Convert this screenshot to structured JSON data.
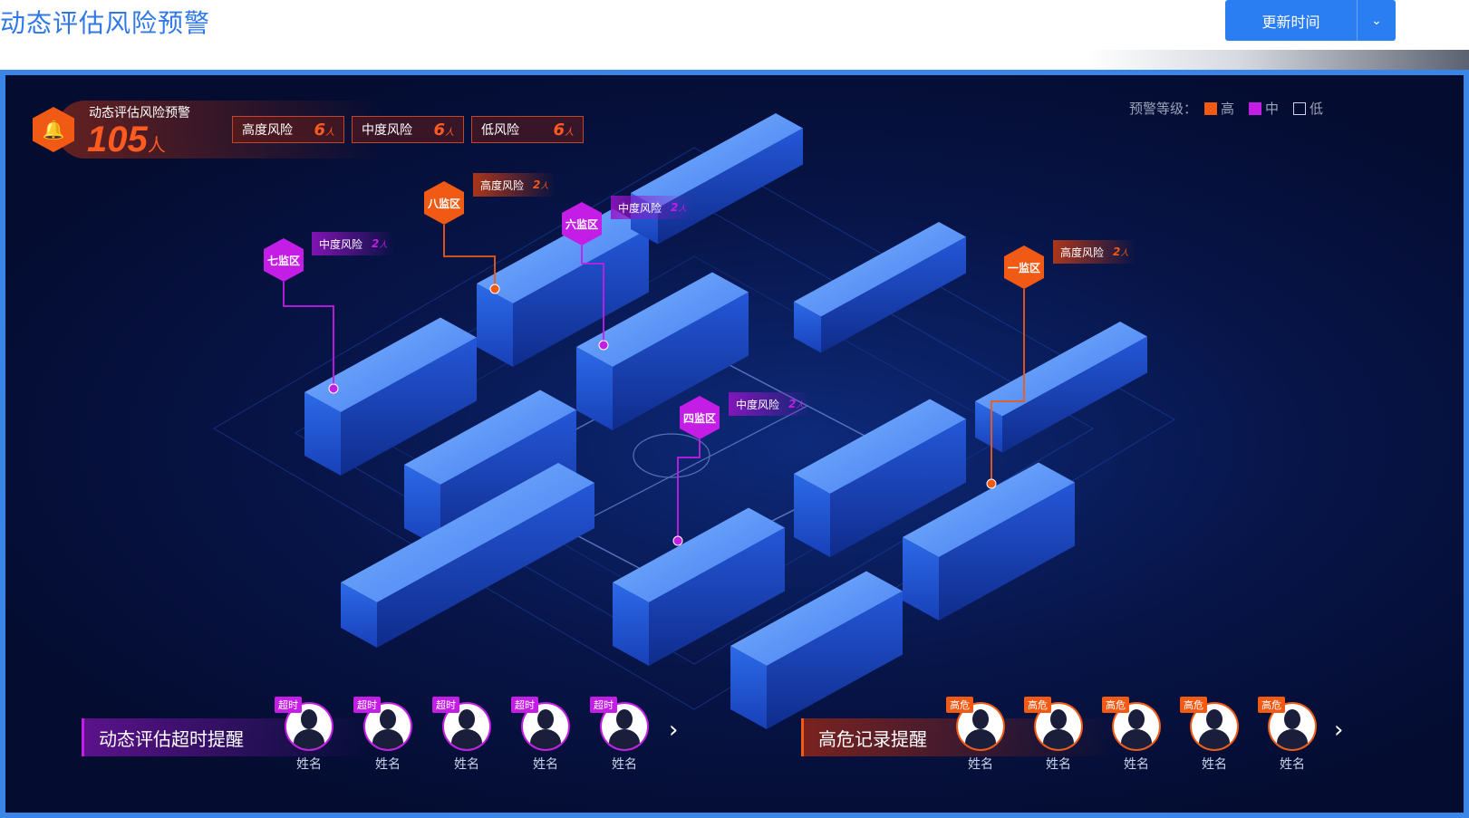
{
  "header": {
    "title": "动态评估风险预警",
    "update_button": "更新时间",
    "dropdown_icon": "chevron-down-icon"
  },
  "summary": {
    "title": "动态评估风险预警",
    "total": "105",
    "unit": "人",
    "levels": [
      {
        "label": "高度风险",
        "count": "6",
        "unit": "人"
      },
      {
        "label": "中度风险",
        "count": "6",
        "unit": "人"
      },
      {
        "label": "低风险",
        "count": "6",
        "unit": "人"
      }
    ]
  },
  "legend": {
    "label": "预警等级：",
    "items": [
      {
        "label": "高",
        "color": "#f05a14"
      },
      {
        "label": "中",
        "color": "#c41de6"
      },
      {
        "label": "低",
        "color": "transparent"
      }
    ]
  },
  "zones": [
    {
      "name": "八监区",
      "tag": "高度风险",
      "count": "2",
      "unit": "人",
      "level": "high"
    },
    {
      "name": "六监区",
      "tag": "中度风险",
      "count": "2",
      "unit": "人",
      "level": "medium"
    },
    {
      "name": "七监区",
      "tag": "中度风险",
      "count": "2",
      "unit": "人",
      "level": "medium"
    },
    {
      "name": "一监区",
      "tag": "高度风险",
      "count": "2",
      "unit": "人",
      "level": "high"
    },
    {
      "name": "四监区",
      "tag": "中度风险",
      "count": "2",
      "unit": "人",
      "level": "medium"
    }
  ],
  "timeout_panel": {
    "title": "动态评估超时提醒",
    "people": [
      {
        "badge": "超时",
        "name": "姓名"
      },
      {
        "badge": "超时",
        "name": "姓名"
      },
      {
        "badge": "超时",
        "name": "姓名"
      },
      {
        "badge": "超时",
        "name": "姓名"
      },
      {
        "badge": "超时",
        "name": "姓名"
      }
    ]
  },
  "highrisk_panel": {
    "title": "高危记录提醒",
    "people": [
      {
        "badge": "高危",
        "name": "姓名"
      },
      {
        "badge": "高危",
        "name": "姓名"
      },
      {
        "badge": "高危",
        "name": "姓名"
      },
      {
        "badge": "高危",
        "name": "姓名"
      },
      {
        "badge": "高危",
        "name": "姓名"
      }
    ]
  },
  "colors": {
    "high": "#f05a14",
    "medium": "#c41de6",
    "accent": "#2b7df2"
  }
}
